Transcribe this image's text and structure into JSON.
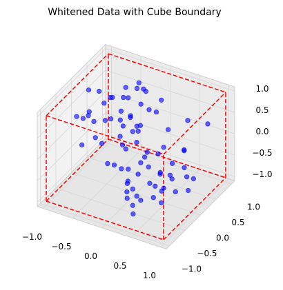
{
  "chart_data": {
    "type": "scatter3d",
    "title": "Whitened Data with Cube Boundary",
    "x": [
      -0.85,
      0.32,
      -0.12,
      0.67,
      -0.45,
      0.91,
      -0.73,
      0.05,
      0.48,
      -0.27,
      0.76,
      -0.95,
      0.18,
      -0.58,
      0.39,
      -0.06,
      0.83,
      -0.36,
      0.61,
      -0.81,
      0.24,
      -0.49,
      0.97,
      -0.15,
      0.55,
      -0.68,
      0.11,
      -0.92,
      0.43,
      -0.31,
      0.72,
      -0.04,
      0.29,
      -0.77,
      0.64,
      -0.22,
      0.88,
      -0.53,
      0.16,
      -0.87,
      0.51,
      -0.39,
      0.03,
      0.79,
      -0.63,
      0.36,
      -0.09,
      0.94,
      -0.44,
      0.21,
      -0.71,
      0.58,
      -0.18,
      0.46,
      -0.97,
      0.69,
      -0.26,
      0.13,
      -0.57,
      0.85,
      -0.34,
      0.41,
      -0.82,
      0.08,
      0.74,
      -0.47,
      0.27,
      -0.65,
      0.99,
      -0.11,
      0.53,
      -0.89,
      0.35,
      -0.2,
      0.62,
      -0.76,
      0.19,
      -0.41,
      0.81,
      -0.02
    ],
    "y": [
      0.42,
      -0.71,
      0.88,
      -0.23,
      0.15,
      -0.94,
      0.57,
      -0.38,
      0.76,
      0.03,
      -0.62,
      0.29,
      -0.85,
      0.68,
      -0.12,
      0.93,
      -0.47,
      0.21,
      -0.79,
      0.54,
      -0.31,
      0.82,
      -0.56,
      0.11,
      -0.97,
      0.37,
      -0.18,
      0.71,
      -0.66,
      0.26,
      0.95,
      -0.43,
      0.62,
      -0.08,
      0.34,
      -0.89,
      0.19,
      -0.74,
      0.48,
      -0.27,
      -0.52,
      0.77,
      -0.35,
      0.06,
      0.86,
      -0.61,
      0.45,
      -0.14,
      0.99,
      -0.83,
      0.24,
      -0.69,
      0.58,
      -0.96,
      0.13,
      -0.41,
      0.81,
      -0.22,
      0.67,
      -0.05,
      0.39,
      -0.88,
      0.72,
      -0.33,
      -0.57,
      0.91,
      -0.76,
      0.47,
      -0.19,
      0.63,
      -0.44,
      0.16,
      -0.92,
      0.53,
      -0.28,
      0.08,
      -0.64,
      0.87,
      -0.37,
      0.75
    ],
    "z": [
      0.61,
      -0.33,
      0.12,
      0.87,
      -0.74,
      0.45,
      -0.09,
      -0.91,
      0.28,
      0.69,
      -0.52,
      0.18,
      0.94,
      -0.27,
      -0.66,
      0.39,
      0.05,
      -0.83,
      0.72,
      -0.14,
      0.83,
      -0.46,
      -0.21,
      0.58,
      0.31,
      -0.97,
      0.66,
      0.09,
      -0.58,
      -0.38,
      0.17,
      0.92,
      -0.71,
      0.44,
      -0.03,
      0.76,
      -0.49,
      0.34,
      -0.88,
      0.51,
      -0.25,
      0.63,
      -0.79,
      0.22,
      0.48,
      0.97,
      -0.61,
      -0.18,
      0.08,
      0.74,
      -0.42,
      0.29,
      0.85,
      -0.67,
      0.13,
      -0.36,
      0.59,
      -0.94,
      0.41,
      -0.07,
      0.71,
      -0.55,
      0.26,
      0.96,
      -0.29,
      -0.77,
      0.15,
      0.52,
      -0.44,
      0.36,
      -0.63,
      0.81,
      0.02,
      -0.85,
      0.47,
      0.19,
      -0.31,
      0.68,
      -0.12,
      -0.72
    ],
    "color": "#0000ff",
    "boundary": [
      -1,
      1
    ],
    "boundary_color": "#ff0000",
    "xlim": [
      -1.1,
      1.1
    ],
    "ylim": [
      -1.1,
      1.1
    ],
    "zlim": [
      -1.1,
      1.1
    ],
    "xticks": [
      {
        "value": -1,
        "label": "−1.0"
      },
      {
        "value": -0.5,
        "label": "−0.5"
      },
      {
        "value": 0,
        "label": "0.0"
      },
      0.5,
      {
        "value": 1,
        "label": "1.0"
      }
    ],
    "yticks": [
      {
        "value": -1,
        "label": "−1.0"
      },
      {
        "value": -0.5,
        "label": "−0.5"
      },
      {
        "value": 0,
        "label": "0.0"
      },
      0.5,
      {
        "value": 1,
        "label": "1.0"
      }
    ],
    "zticks": [
      {
        "value": -1,
        "label": "−1.0"
      },
      {
        "value": -0.5,
        "label": "−0.5"
      },
      {
        "value": 0,
        "label": "0.0"
      },
      0.5,
      {
        "value": 1,
        "label": "1.0"
      }
    ],
    "grid": true
  }
}
